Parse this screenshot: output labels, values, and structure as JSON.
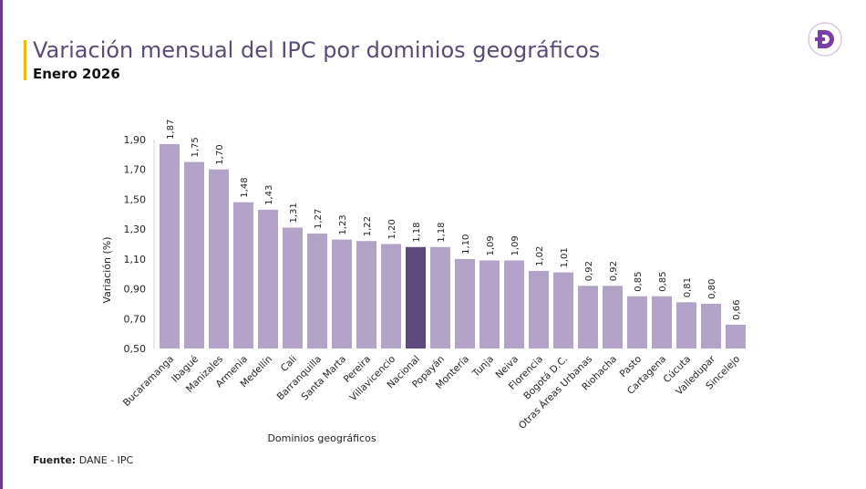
{
  "header": {
    "title": "Variación mensual del IPC por dominios geográficos",
    "subtitle": "Enero 2026",
    "logo_icon": "dane-d-logo-icon"
  },
  "footer": {
    "source_label": "Fuente:",
    "source_text": "DANE - IPC"
  },
  "colors": {
    "bar": "#b3a2c8",
    "highlight_bar": "#5f4a7e",
    "accent": "#f2b705",
    "brand": "#6c3a8e"
  },
  "chart_data": {
    "type": "bar",
    "title": "Variación mensual del IPC por dominios geográficos",
    "xlabel": "Dominios geográficos",
    "ylabel": "Variación (%)",
    "ylim": [
      0.5,
      1.9
    ],
    "yticks": [
      "0,50",
      "0,70",
      "0,90",
      "1,10",
      "1,30",
      "1,50",
      "1,70",
      "1,90"
    ],
    "ytick_values": [
      0.5,
      0.7,
      0.9,
      1.1,
      1.3,
      1.5,
      1.7,
      1.9
    ],
    "grid": false,
    "highlight": "Nacional",
    "categories": [
      "Bucaramanga",
      "Ibagué",
      "Manizales",
      "Armenia",
      "Medellín",
      "Cali",
      "Barranquilla",
      "Santa Marta",
      "Pereira",
      "Villavicencio",
      "Nacional",
      "Popayán",
      "Montería",
      "Tunja",
      "Neiva",
      "Florencia",
      "Bogotá D.C.",
      "Otras Áreas Urbanas",
      "Riohacha",
      "Pasto",
      "Cartagena",
      "Cúcuta",
      "Valledupar",
      "Sincelejo"
    ],
    "values": [
      1.87,
      1.75,
      1.7,
      1.48,
      1.43,
      1.31,
      1.27,
      1.23,
      1.22,
      1.2,
      1.18,
      1.18,
      1.1,
      1.09,
      1.09,
      1.02,
      1.01,
      0.92,
      0.92,
      0.85,
      0.85,
      0.81,
      0.8,
      0.66
    ],
    "labels": [
      "1,87",
      "1,75",
      "1,70",
      "1,48",
      "1,43",
      "1,31",
      "1,27",
      "1,23",
      "1,22",
      "1,20",
      "1,18",
      "1,18",
      "1,10",
      "1,09",
      "1,09",
      "1,02",
      "1,01",
      "0,92",
      "0,92",
      "0,85",
      "0,85",
      "0,81",
      "0,80",
      "0,66"
    ]
  }
}
